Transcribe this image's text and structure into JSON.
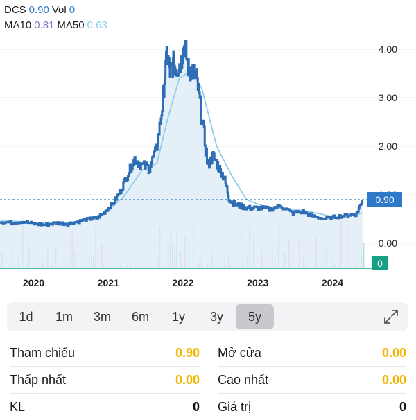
{
  "legend": {
    "ticker": "DCS",
    "price": "0.90",
    "vol_label": "Vol",
    "vol_value": "0",
    "ma10_label": "MA10",
    "ma10_value": "0.81",
    "ma50_label": "MA50",
    "ma50_value": "0.63"
  },
  "price_badge": "0.90",
  "volume_badge": "0",
  "range_buttons": [
    "1d",
    "1m",
    "3m",
    "6m",
    "1y",
    "3y",
    "5y"
  ],
  "active_range": "5y",
  "stats": {
    "reference_label": "Tham chiếu",
    "reference_value": "0.90",
    "open_label": "Mở cửa",
    "open_value": "0.00",
    "low_label": "Thấp nhất",
    "low_value": "0.00",
    "high_label": "Cao nhất",
    "high_value": "0.00",
    "volume_label": "KL",
    "volume_value": "0",
    "value_label": "Giá trị",
    "value_value": "0"
  },
  "colors": {
    "price_line": "#2e6db4",
    "ma_line": "#8fcde8",
    "area_fill": "#dbe9f6",
    "badge": "#2e79c9",
    "volume_badge": "#16a085",
    "highlight": "#f3b400"
  },
  "chart_data": {
    "type": "line",
    "y_ticks": [
      "4.00",
      "3.00",
      "2.00",
      "1.00",
      "0.00"
    ],
    "x_ticks": [
      "2020",
      "2021",
      "2022",
      "2023",
      "2024"
    ],
    "ylim": [
      -0.5,
      4.3
    ],
    "xlim": [
      2019.55,
      2024.45
    ],
    "current_price": 0.9,
    "series": [
      {
        "name": "DCS",
        "x": [
          2019.55,
          2019.7,
          2019.85,
          2020.0,
          2020.15,
          2020.3,
          2020.45,
          2020.6,
          2020.75,
          2020.85,
          2020.95,
          2021.05,
          2021.15,
          2021.25,
          2021.35,
          2021.45,
          2021.55,
          2021.65,
          2021.72,
          2021.78,
          2021.83,
          2021.87,
          2021.92,
          2021.97,
          2022.02,
          2022.07,
          2022.12,
          2022.18,
          2022.25,
          2022.33,
          2022.4,
          2022.48,
          2022.55,
          2022.62,
          2022.7,
          2022.8,
          2022.9,
          2023.0,
          2023.15,
          2023.3,
          2023.45,
          2023.6,
          2023.75,
          2023.9,
          2024.05,
          2024.2,
          2024.32,
          2024.4
        ],
        "values": [
          0.45,
          0.42,
          0.45,
          0.4,
          0.38,
          0.42,
          0.4,
          0.45,
          0.5,
          0.52,
          0.65,
          0.8,
          1.05,
          1.4,
          1.75,
          1.6,
          1.55,
          2.0,
          2.8,
          3.9,
          3.5,
          3.7,
          3.6,
          3.75,
          4.1,
          3.6,
          3.55,
          3.4,
          2.6,
          1.6,
          1.8,
          1.55,
          1.35,
          0.9,
          0.8,
          0.75,
          0.72,
          0.73,
          0.7,
          0.78,
          0.62,
          0.65,
          0.55,
          0.5,
          0.55,
          0.58,
          0.6,
          0.9
        ]
      },
      {
        "name": "MA50",
        "x": [
          2019.55,
          2020.0,
          2020.5,
          2020.9,
          2021.2,
          2021.45,
          2021.65,
          2021.8,
          2021.95,
          2022.1,
          2022.25,
          2022.45,
          2022.65,
          2022.85,
          2023.1,
          2023.4,
          2023.7,
          2024.0,
          2024.3,
          2024.4
        ],
        "values": [
          0.48,
          0.42,
          0.42,
          0.55,
          0.95,
          1.5,
          1.65,
          2.6,
          3.4,
          3.55,
          3.2,
          2.0,
          1.4,
          0.9,
          0.75,
          0.72,
          0.65,
          0.55,
          0.57,
          0.63
        ]
      }
    ],
    "volume_value": 0
  }
}
